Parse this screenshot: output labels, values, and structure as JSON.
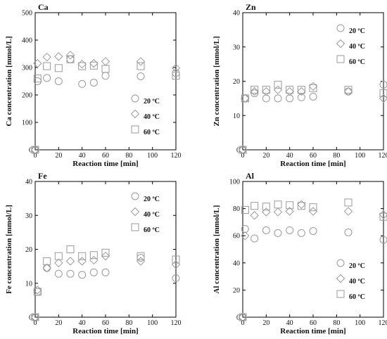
{
  "chart_data": [
    {
      "type": "scatter",
      "title": "Ca",
      "xlabel": "Reaction time [min]",
      "ylabel": "Ca concentration [mmol/L]",
      "xlim": [
        0,
        120
      ],
      "ylim": [
        0,
        500
      ],
      "xticks": [
        0,
        20,
        40,
        60,
        80,
        100,
        120
      ],
      "yticks": [
        0,
        100,
        200,
        300,
        400,
        500
      ],
      "legend_position": "bottom-right",
      "series": [
        {
          "name": "20 ºC",
          "marker": "circle",
          "points": [
            [
              0,
              0
            ],
            [
              2,
              250
            ],
            [
              10,
              262
            ],
            [
              20,
              250
            ],
            [
              30,
              330
            ],
            [
              40,
              240
            ],
            [
              50,
              245
            ],
            [
              60,
              270
            ],
            [
              90,
              268
            ],
            [
              120,
              280
            ]
          ]
        },
        {
          "name": "40 ºC",
          "marker": "diamond",
          "points": [
            [
              0,
              0
            ],
            [
              2,
              315
            ],
            [
              10,
              338
            ],
            [
              20,
              340
            ],
            [
              30,
              345
            ],
            [
              40,
              312
            ],
            [
              50,
              315
            ],
            [
              60,
              322
            ],
            [
              90,
              322
            ],
            [
              120,
              298
            ]
          ]
        },
        {
          "name": "60 ºC",
          "marker": "square",
          "points": [
            [
              0,
              0
            ],
            [
              2,
              260
            ],
            [
              10,
              305
            ],
            [
              20,
              298
            ],
            [
              30,
              330
            ],
            [
              40,
              305
            ],
            [
              50,
              307
            ],
            [
              60,
              295
            ],
            [
              90,
              305
            ],
            [
              120,
              270
            ]
          ]
        }
      ]
    },
    {
      "type": "scatter",
      "title": "Zn",
      "xlabel": "Reaction time [min]",
      "ylabel": "Zn concentration [mmol/L]",
      "xlim": [
        0,
        120
      ],
      "ylim": [
        0,
        40
      ],
      "xticks": [
        0,
        20,
        40,
        60,
        80,
        100,
        120
      ],
      "yticks": [
        0,
        10,
        20,
        30,
        40
      ],
      "legend_position": "top-right",
      "series": [
        {
          "name": "20 ºC",
          "marker": "circle",
          "points": [
            [
              0,
              0
            ],
            [
              2,
              15
            ],
            [
              10,
              16.5
            ],
            [
              20,
              15
            ],
            [
              30,
              15
            ],
            [
              40,
              15
            ],
            [
              50,
              15.3
            ],
            [
              60,
              15.5
            ],
            [
              90,
              17
            ],
            [
              120,
              19
            ]
          ]
        },
        {
          "name": "40 ºC",
          "marker": "diamond",
          "points": [
            [
              0,
              0
            ],
            [
              2,
              15
            ],
            [
              10,
              17
            ],
            [
              20,
              17
            ],
            [
              30,
              17.5
            ],
            [
              40,
              17
            ],
            [
              50,
              17
            ],
            [
              60,
              18.5
            ],
            [
              90,
              17
            ],
            [
              120,
              15
            ]
          ]
        },
        {
          "name": "60 ºC",
          "marker": "square",
          "points": [
            [
              0,
              0
            ],
            [
              2,
              15
            ],
            [
              10,
              17.5
            ],
            [
              20,
              17.5
            ],
            [
              30,
              19
            ],
            [
              40,
              17.5
            ],
            [
              50,
              17.5
            ],
            [
              60,
              18
            ],
            [
              90,
              17.5
            ],
            [
              120,
              16.5
            ]
          ]
        }
      ]
    },
    {
      "type": "scatter",
      "title": "Fe",
      "xlabel": "Reaction time [min]",
      "ylabel": "Fe concentration [mmol/L]",
      "xlim": [
        0,
        120
      ],
      "ylim": [
        0,
        40
      ],
      "xticks": [
        0,
        20,
        40,
        60,
        80,
        100,
        120
      ],
      "yticks": [
        0,
        10,
        20,
        30,
        40
      ],
      "legend_position": "top-right",
      "series": [
        {
          "name": "20 ºC",
          "marker": "circle",
          "points": [
            [
              0,
              0
            ],
            [
              2,
              7.5
            ],
            [
              10,
              14.5
            ],
            [
              20,
              12.8
            ],
            [
              30,
              12.8
            ],
            [
              40,
              12.5
            ],
            [
              50,
              13.2
            ],
            [
              60,
              13.2
            ],
            [
              90,
              17.5
            ],
            [
              120,
              11.5
            ]
          ]
        },
        {
          "name": "40 ºC",
          "marker": "diamond",
          "points": [
            [
              0,
              0
            ],
            [
              2,
              8
            ],
            [
              10,
              14.5
            ],
            [
              20,
              16
            ],
            [
              30,
              16.5
            ],
            [
              40,
              16.5
            ],
            [
              50,
              16.8
            ],
            [
              60,
              18
            ],
            [
              90,
              16.5
            ],
            [
              120,
              15.5
            ]
          ]
        },
        {
          "name": "60 ºC",
          "marker": "square",
          "points": [
            [
              0,
              0
            ],
            [
              2,
              7.5
            ],
            [
              10,
              16.5
            ],
            [
              20,
              18
            ],
            [
              30,
              20
            ],
            [
              40,
              18
            ],
            [
              50,
              18.3
            ],
            [
              60,
              19
            ],
            [
              90,
              18
            ],
            [
              120,
              17
            ]
          ]
        }
      ]
    },
    {
      "type": "scatter",
      "title": "Al",
      "xlabel": "Reaction time [min]",
      "ylabel": "Al concentration [mmol/L]",
      "xlim": [
        0,
        120
      ],
      "ylim": [
        0,
        100
      ],
      "xticks": [
        0,
        20,
        40,
        60,
        80,
        100,
        120
      ],
      "yticks": [
        0,
        20,
        40,
        60,
        80,
        100
      ],
      "legend_position": "bottom-right",
      "series": [
        {
          "name": "20 ºC",
          "marker": "circle",
          "points": [
            [
              0,
              0
            ],
            [
              2,
              65
            ],
            [
              10,
              58
            ],
            [
              20,
              64
            ],
            [
              30,
              62
            ],
            [
              40,
              64
            ],
            [
              50,
              62
            ],
            [
              60,
              63.5
            ],
            [
              90,
              62.5
            ],
            [
              120,
              57
            ]
          ]
        },
        {
          "name": "40 ºC",
          "marker": "diamond",
          "points": [
            [
              0,
              0
            ],
            [
              2,
              60
            ],
            [
              10,
              75
            ],
            [
              20,
              77.5
            ],
            [
              30,
              77.5
            ],
            [
              40,
              78
            ],
            [
              50,
              83
            ],
            [
              60,
              78
            ],
            [
              90,
              78
            ],
            [
              120,
              75.5
            ]
          ]
        },
        {
          "name": "60 ºC",
          "marker": "square",
          "points": [
            [
              0,
              0
            ],
            [
              2,
              79
            ],
            [
              10,
              82
            ],
            [
              20,
              81.5
            ],
            [
              30,
              83
            ],
            [
              40,
              82.5
            ],
            [
              50,
              82
            ],
            [
              60,
              81
            ],
            [
              90,
              84.5
            ],
            [
              120,
              74
            ]
          ]
        }
      ]
    }
  ]
}
